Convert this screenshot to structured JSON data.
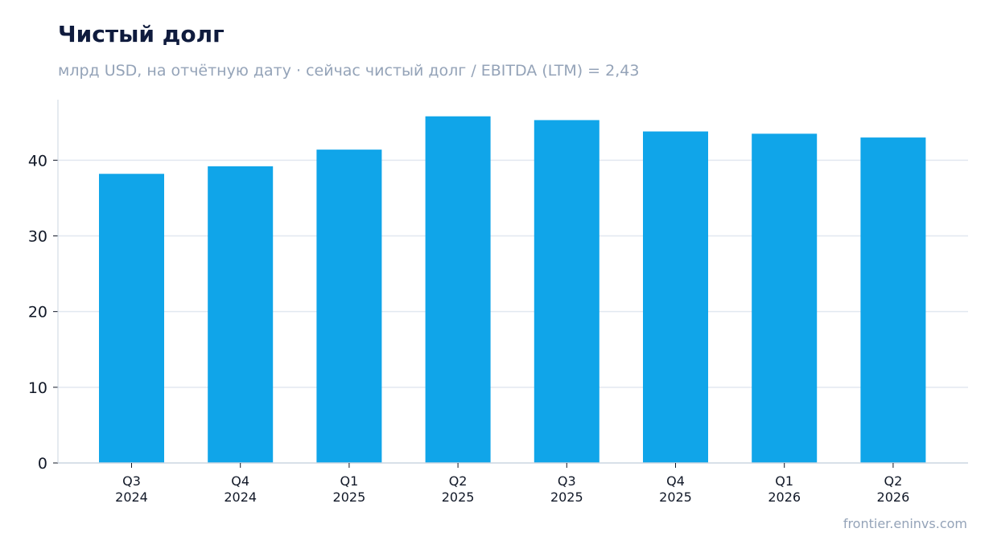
{
  "header": {
    "title": "Чистый долг",
    "subtitle": "млрд USD, на отчётную дату · сейчас чистый долг / EBITDA (LTM) = 2,43"
  },
  "footer": {
    "source": "frontier.eninvs.com"
  },
  "colors": {
    "bar": "#10a5e9",
    "grid": "#e2e8f0",
    "axis": "#cbd5e1"
  },
  "chart_data": {
    "type": "bar",
    "categories": [
      [
        "Q3",
        "2024"
      ],
      [
        "Q4",
        "2024"
      ],
      [
        "Q1",
        "2025"
      ],
      [
        "Q2",
        "2025"
      ],
      [
        "Q3",
        "2025"
      ],
      [
        "Q4",
        "2025"
      ],
      [
        "Q1",
        "2026"
      ],
      [
        "Q2",
        "2026"
      ]
    ],
    "values": [
      38.2,
      39.2,
      41.4,
      45.8,
      45.3,
      43.8,
      43.5,
      43.0
    ],
    "title": "Чистый долг",
    "xlabel": "",
    "ylabel": "",
    "ylim": [
      0,
      48
    ],
    "yticks": [
      0,
      10,
      20,
      30,
      40
    ],
    "grid": true,
    "legend": "none"
  }
}
